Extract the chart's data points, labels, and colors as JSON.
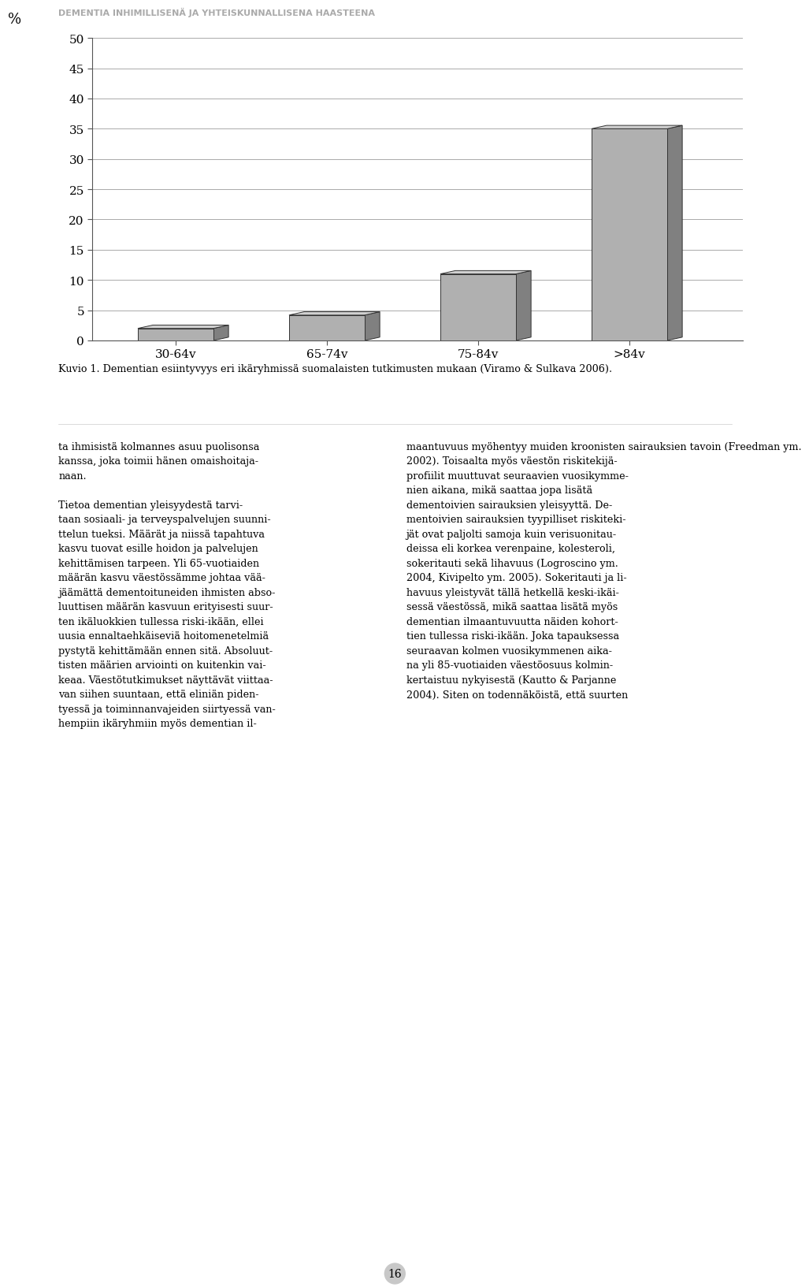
{
  "categories": [
    "30-64v",
    "65-74v",
    "75-84v",
    ">84v"
  ],
  "values": [
    2.0,
    4.2,
    11.0,
    35.0
  ],
  "bar_color_front": "#b0b0b0",
  "bar_color_top": "#d0d0d0",
  "bar_color_side": "#808080",
  "ylabel": "%",
  "ylim": [
    0,
    50
  ],
  "yticks": [
    0,
    5,
    10,
    15,
    20,
    25,
    30,
    35,
    40,
    45,
    50
  ],
  "background_color": "#ffffff",
  "plot_bg_color": "#ffffff",
  "grid_color": "#aaaaaa",
  "header_text": "DEMENTIA INHIMILLISENÄ JA YHTEISKUNNALLISENA HAASTEENA",
  "header_color": "#aaaaaa",
  "caption_bold": "Kuvio 1.",
  "caption_rest": " Dementian esiintyvyys eri ikäryhmissä suomalaisten tutkimusten mukaan (Viramo & Sulkava 2006).",
  "page_number": "16",
  "body_text_left": "ta ihmisistä kolmannes asuu puolisonsa\nkanssa, joka toimii hänen omaishoitaja-\nnaan.\n\nTietoa dementian yleisyydestä tarvi-\ntaan sosiaali- ja terveyspalvelujen suunni-\nttelun tueksi. Määrät ja niissä tapahtuva\nkasvu tuovat esille hoidon ja palvelujen\nkehittämisen tarpeen. Yli 65-vuotiaiden\nmäärän kasvu väestössämme johtaa vää-\njäämättä dementoituneiden ihmisten abso-\nluuttisen määrän kasvuun erityisesti suur-\nten ikäluokkien tullessa riski-ikään, ellei\nuusia ennaltaehkäiseviä hoitomenetelmiä\npystytä kehittämään ennen sitä. Absoluut-\ntisten määrien arviointi on kuitenkin vai-\nkeaa. Väestötutkimukset näyttävät viittaa-\nvan siihen suuntaan, että eliniän piden-\ntyessä ja toiminnanvajeiden siirtyessä van-\nhempiin ikäryhmiin myös dementian il-",
  "body_text_right": "maantuvuus myöhentyy muiden kroonisten sairauksien tavoin (Freedman ym.\n2002). Toisaalta myös väestön riskitekijä-\nprofiilit muuttuvat seuraavien vuosikymme-\nnien aikana, mikä saattaa jopa lisätä\ndementoivien sairauksien yleisyyttä. De-\nmentoivien sairauksien tyypilliset riskiteki-\njät ovat paljolti samoja kuin verisuonitau-\ndeissa eli korkea verenpaine, kolesteroli,\nsokeritauti sekä lihavuus (Logroscino ym.\n2004, Kivipelto ym. 2005). Sokeritauti ja li-\nhavuus yleistyvät tällä hetkellä keski-ikäi-\nsessä väestössä, mikä saattaa lisätä myös\ndementian ilmaantuvuutta näiden kohort-\ntien tullessa riski-ikään. Joka tapauksessa\nseuraavan kolmen vuosikymmenen aika-\nna yli 85-vuotiaiden väestöosuus kolmin-\nkertaistuu nykyisestä (Kautto & Parjanne\n2004). Siten on todennäköistä, että suurten"
}
